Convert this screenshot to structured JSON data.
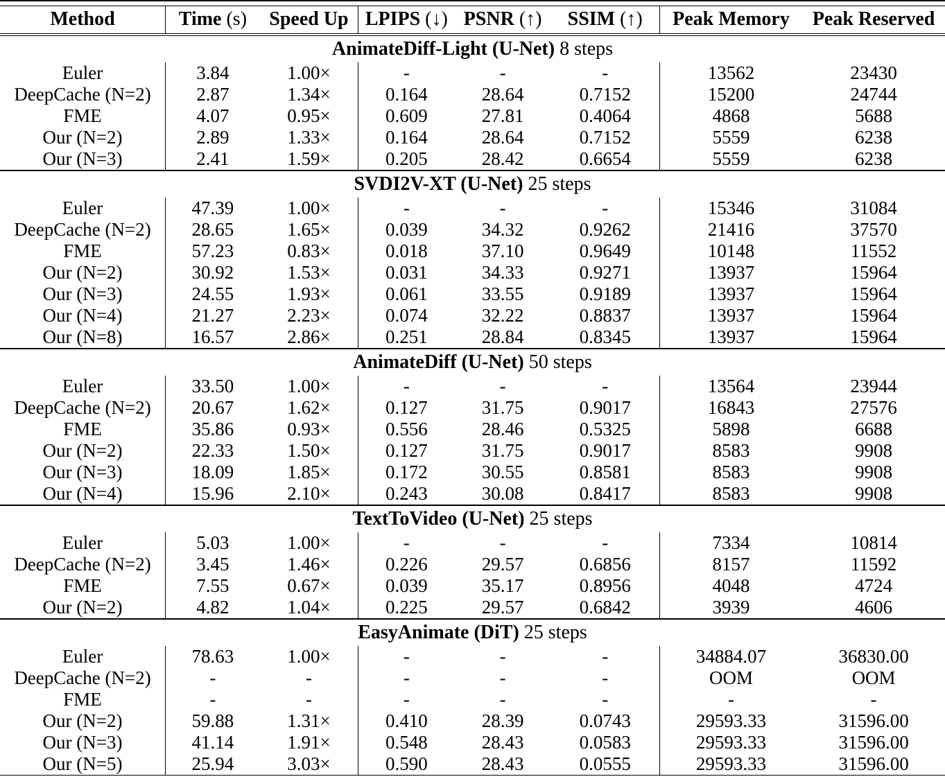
{
  "table": {
    "columns": [
      {
        "label": "Method",
        "suffix": ""
      },
      {
        "label": "Time",
        "suffix": "(s)"
      },
      {
        "label": "Speed Up",
        "suffix": ""
      },
      {
        "label": "LPIPS",
        "suffix": "(↓)"
      },
      {
        "label": "PSNR",
        "suffix": "(↑)"
      },
      {
        "label": "SSIM",
        "suffix": "(↑)"
      },
      {
        "label": "Peak Memory",
        "suffix": ""
      },
      {
        "label": "Peak Reserved",
        "suffix": ""
      }
    ],
    "vrule_after": [
      0,
      2,
      5
    ],
    "sections": [
      {
        "title_bold": "AnimateDiff-Light (U-Net)",
        "title_rest": "8 steps",
        "rows": [
          [
            "Euler",
            "3.84",
            "1.00×",
            "-",
            "-",
            "-",
            "13562",
            "23430"
          ],
          [
            "DeepCache (N=2)",
            "2.87",
            "1.34×",
            "0.164",
            "28.64",
            "0.7152",
            "15200",
            "24744"
          ],
          [
            "FME",
            "4.07",
            "0.95×",
            "0.609",
            "27.81",
            "0.4064",
            "4868",
            "5688"
          ],
          [
            "Our (N=2)",
            "2.89",
            "1.33×",
            "0.164",
            "28.64",
            "0.7152",
            "5559",
            "6238"
          ],
          [
            "Our (N=3)",
            "2.41",
            "1.59×",
            "0.205",
            "28.42",
            "0.6654",
            "5559",
            "6238"
          ]
        ]
      },
      {
        "title_bold": "SVDI2V-XT (U-Net)",
        "title_rest": "25 steps",
        "rows": [
          [
            "Euler",
            "47.39",
            "1.00×",
            "-",
            "-",
            "-",
            "15346",
            "31084"
          ],
          [
            "DeepCache (N=2)",
            "28.65",
            "1.65×",
            "0.039",
            "34.32",
            "0.9262",
            "21416",
            "37570"
          ],
          [
            "FME",
            "57.23",
            "0.83×",
            "0.018",
            "37.10",
            "0.9649",
            "10148",
            "11552"
          ],
          [
            "Our (N=2)",
            "30.92",
            "1.53×",
            "0.031",
            "34.33",
            "0.9271",
            "13937",
            "15964"
          ],
          [
            "Our (N=3)",
            "24.55",
            "1.93×",
            "0.061",
            "33.55",
            "0.9189",
            "13937",
            "15964"
          ],
          [
            "Our (N=4)",
            "21.27",
            "2.23×",
            "0.074",
            "32.22",
            "0.8837",
            "13937",
            "15964"
          ],
          [
            "Our (N=8)",
            "16.57",
            "2.86×",
            "0.251",
            "28.84",
            "0.8345",
            "13937",
            "15964"
          ]
        ]
      },
      {
        "title_bold": "AnimateDiff (U-Net)",
        "title_rest": "50 steps",
        "rows": [
          [
            "Euler",
            "33.50",
            "1.00×",
            "-",
            "-",
            "-",
            "13564",
            "23944"
          ],
          [
            "DeepCache (N=2)",
            "20.67",
            "1.62×",
            "0.127",
            "31.75",
            "0.9017",
            "16843",
            "27576"
          ],
          [
            "FME",
            "35.86",
            "0.93×",
            "0.556",
            "28.46",
            "0.5325",
            "5898",
            "6688"
          ],
          [
            "Our (N=2)",
            "22.33",
            "1.50×",
            "0.127",
            "31.75",
            "0.9017",
            "8583",
            "9908"
          ],
          [
            "Our (N=3)",
            "18.09",
            "1.85×",
            "0.172",
            "30.55",
            "0.8581",
            "8583",
            "9908"
          ],
          [
            "Our (N=4)",
            "15.96",
            "2.10×",
            "0.243",
            "30.08",
            "0.8417",
            "8583",
            "9908"
          ]
        ]
      },
      {
        "title_bold": "TextToVideo (U-Net)",
        "title_rest": "25 steps",
        "rows": [
          [
            "Euler",
            "5.03",
            "1.00×",
            "-",
            "-",
            "-",
            "7334",
            "10814"
          ],
          [
            "DeepCache (N=2)",
            "3.45",
            "1.46×",
            "0.226",
            "29.57",
            "0.6856",
            "8157",
            "11592"
          ],
          [
            "FME",
            "7.55",
            "0.67×",
            "0.039",
            "35.17",
            "0.8956",
            "4048",
            "4724"
          ],
          [
            "Our (N=2)",
            "4.82",
            "1.04×",
            "0.225",
            "29.57",
            "0.6842",
            "3939",
            "4606"
          ]
        ]
      },
      {
        "title_bold": "EasyAnimate (DiT)",
        "title_rest": "25 steps",
        "rows": [
          [
            "Euler",
            "78.63",
            "1.00×",
            "-",
            "-",
            "-",
            "34884.07",
            "36830.00"
          ],
          [
            "DeepCache (N=2)",
            "-",
            "-",
            "-",
            "-",
            "-",
            "OOM",
            "OOM"
          ],
          [
            "FME",
            "-",
            "-",
            "-",
            "-",
            "-",
            "-",
            "-"
          ],
          [
            "Our (N=2)",
            "59.88",
            "1.31×",
            "0.410",
            "28.39",
            "0.0743",
            "29593.33",
            "31596.00"
          ],
          [
            "Our (N=3)",
            "41.14",
            "1.91×",
            "0.548",
            "28.43",
            "0.0583",
            "29593.33",
            "31596.00"
          ],
          [
            "Our (N=5)",
            "25.94",
            "3.03×",
            "0.590",
            "28.43",
            "0.0555",
            "29593.33",
            "31596.00"
          ]
        ]
      }
    ]
  }
}
